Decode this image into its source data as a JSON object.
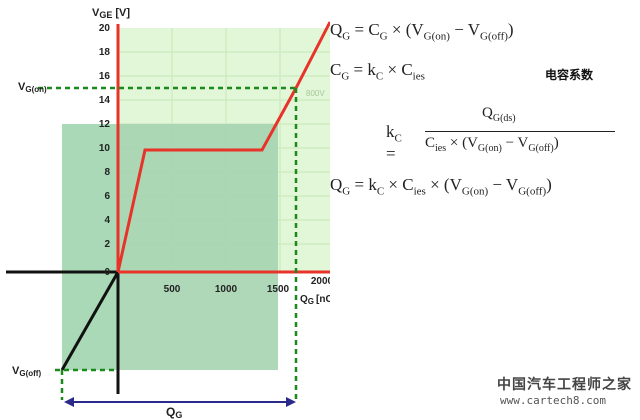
{
  "axes": {
    "y_label": "V",
    "y_label_sub": "GE",
    "y_label_unit": "[V]",
    "x_label": "Q",
    "x_label_sub": "G",
    "x_label_unit": "[nC]",
    "y_ticks": [
      "20",
      "18",
      "16",
      "14",
      "12",
      "10",
      "8",
      "6",
      "4",
      "2",
      "0"
    ],
    "x_ticks": [
      "500",
      "1000",
      "1500",
      "2000"
    ]
  },
  "annotations": {
    "vg_on": "V",
    "vg_on_sub": "G(on)",
    "vg_off": "V",
    "vg_off_sub": "G(off)",
    "voltage_tag": "800V",
    "qg_span": "Q",
    "qg_span_sub": "G"
  },
  "formulas": {
    "f1": "Q_G = C_G × (V_G(on) − V_G(off))",
    "f2": "C_G = k_C × C_ies",
    "f2_label": "电容系数",
    "f3_lhs": "k_C =",
    "f3_num": "Q_G(ds)",
    "f3_den": "C_ies × (V_G(on) − V_G(off))",
    "f4": "Q_G = k_C × C_ies × (V_G(on) − V_G(off))"
  },
  "watermark": {
    "line1": "中国汽车工程师之家",
    "line2": "www.cartech8.com"
  },
  "colors": {
    "curve": "#e8332a",
    "grid_fill": "#dff5d5",
    "dark_fill": "#9fd3ad",
    "dashed": "#1a8a1a",
    "span_arrow": "#2a2a8a"
  }
}
